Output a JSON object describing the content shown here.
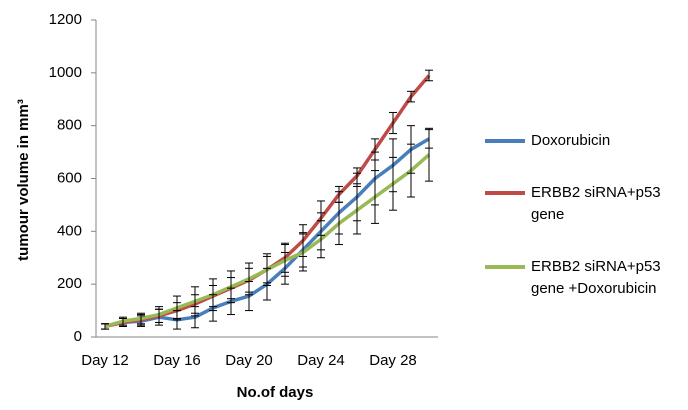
{
  "chart_data": {
    "type": "line",
    "x_label": "No.of days",
    "y_label": "tumour volume in mm³",
    "categories": [
      "Day 12",
      null,
      null,
      null,
      "Day 16",
      null,
      null,
      null,
      "Day 20",
      null,
      null,
      null,
      "Day 24",
      null,
      null,
      null,
      "Day 28",
      null,
      null
    ],
    "ylim": [
      0,
      1200
    ],
    "yticks": [
      0,
      200,
      400,
      600,
      800,
      1000,
      1200
    ],
    "series": [
      {
        "name": "Doxorubicin",
        "color": "#4a7ebb",
        "values": [
          40,
          55,
          60,
          75,
          65,
          75,
          110,
          135,
          155,
          200,
          260,
          330,
          400,
          470,
          530,
          600,
          650,
          710,
          750
        ],
        "errors": [
          10,
          15,
          20,
          30,
          35,
          40,
          50,
          50,
          55,
          60,
          60,
          65,
          70,
          80,
          90,
          100,
          100,
          90,
          35
        ]
      },
      {
        "name": "ERBB2 siRNA+p53 gene",
        "color": "#be4b48",
        "values": [
          40,
          55,
          65,
          80,
          100,
          125,
          155,
          185,
          215,
          255,
          300,
          365,
          450,
          540,
          610,
          710,
          810,
          910,
          990
        ],
        "errors": [
          10,
          15,
          20,
          25,
          30,
          35,
          40,
          40,
          45,
          50,
          55,
          60,
          65,
          30,
          30,
          40,
          40,
          20,
          20
        ]
      },
      {
        "name": "ERBB2 siRNA+p53 gene +Doxorubicin",
        "color": "#98b954",
        "values": [
          40,
          60,
          70,
          85,
          110,
          135,
          160,
          190,
          220,
          255,
          290,
          320,
          370,
          430,
          480,
          530,
          580,
          630,
          690
        ],
        "errors": [
          10,
          15,
          20,
          30,
          45,
          55,
          60,
          60,
          60,
          60,
          60,
          70,
          70,
          80,
          90,
          100,
          100,
          100,
          100
        ]
      }
    ],
    "error_bars": true,
    "legend": "right"
  }
}
